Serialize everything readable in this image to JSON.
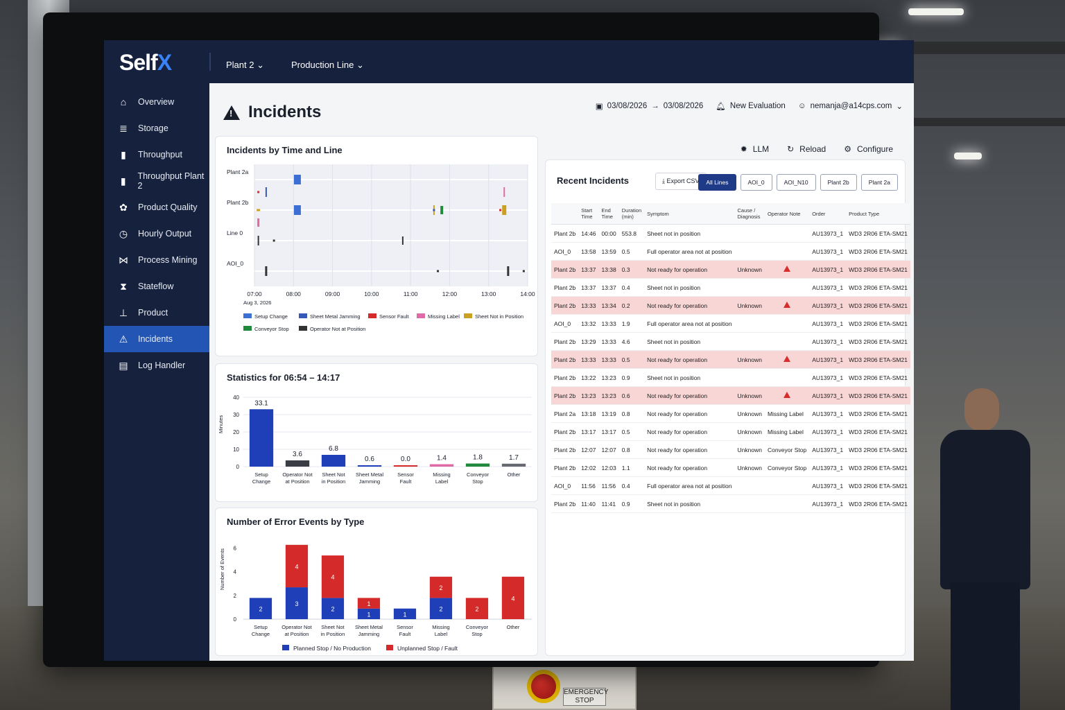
{
  "brand": {
    "logo_main": "Self",
    "logo_accent": "X"
  },
  "topbar": {
    "plant": "Plant 2",
    "line": "Production Line"
  },
  "sidebar": {
    "items": [
      {
        "label": "Overview",
        "icon": "home-icon"
      },
      {
        "label": "Storage",
        "icon": "database-icon"
      },
      {
        "label": "Throughput",
        "icon": "bar-chart-icon"
      },
      {
        "label": "Throughput Plant 2",
        "icon": "bar-chart-icon"
      },
      {
        "label": "Product Quality",
        "icon": "gear-badge-icon"
      },
      {
        "label": "Hourly Output",
        "icon": "clock-icon"
      },
      {
        "label": "Process Mining",
        "icon": "network-icon"
      },
      {
        "label": "Stateflow",
        "icon": "hourglass-icon"
      },
      {
        "label": "Product",
        "icon": "hierarchy-icon"
      },
      {
        "label": "Incidents",
        "icon": "warning-icon",
        "active": true
      },
      {
        "label": "Log Handler",
        "icon": "document-icon"
      }
    ]
  },
  "header": {
    "title": "Incidents",
    "date_from": "03/08/2026",
    "date_to": "03/08/2026",
    "new_evaluation": "New Evaluation",
    "user": "nemanja@a14cps.com"
  },
  "toolbar": {
    "llm": "LLM",
    "reload": "Reload",
    "configure": "Configure"
  },
  "timeline": {
    "title": "Incidents by Time and Line",
    "lines": [
      "Plant 2a",
      "Plant 2b",
      "Line 0",
      "AOI_0"
    ],
    "ticks": [
      "07:00",
      "08:00",
      "09:00",
      "10:00",
      "11:00",
      "12:00",
      "13:00",
      "14:00"
    ],
    "date_label": "Aug 3, 2026",
    "legend": [
      {
        "label": "Setup Change",
        "color": "#3b6fd4"
      },
      {
        "label": "Sheet Metal Jamming",
        "color": "#3557b8"
      },
      {
        "label": "Sensor Fault",
        "color": "#d42a2a"
      },
      {
        "label": "Missing Label",
        "color": "#e06aa5"
      },
      {
        "label": "Sheet Not in Position",
        "color": "#c9a020"
      },
      {
        "label": "Conveyor Stop",
        "color": "#1f8a3c"
      },
      {
        "label": "Operator Not at Position",
        "color": "#333333"
      }
    ]
  },
  "statistics": {
    "title": "Statistics for 06:54 – 14:17",
    "ylabel": "Minutes"
  },
  "errors": {
    "title": "Number of Error Events by Type",
    "ylabel": "Number of Events"
  },
  "chart_data": [
    {
      "type": "bar",
      "title": "Statistics for 06:54 – 14:17",
      "ylabel": "Minutes",
      "ylim": [
        0,
        40
      ],
      "yticks": [
        0,
        10,
        20,
        30,
        40
      ],
      "categories": [
        "Setup Change",
        "Operator Not at Position",
        "Sheet Not in Position",
        "Sheet Metal Jamming",
        "Sensor Fault",
        "Missing Label",
        "Conveyor Stop",
        "Other"
      ],
      "values": [
        33.1,
        3.6,
        6.8,
        0.6,
        0.0,
        1.4,
        1.8,
        1.7
      ],
      "colors": [
        "#1f3fb8",
        "#3a3d44",
        "#1f3fb8",
        "#1f3fb8",
        "#d42a2a",
        "#e06aa5",
        "#1f8a3c",
        "#666a70"
      ]
    },
    {
      "type": "bar",
      "title": "Number of Error Events by Type",
      "ylabel": "Number of Events",
      "ylim": [
        0,
        6
      ],
      "yticks": [
        0,
        2,
        4,
        6
      ],
      "categories": [
        "Setup Change",
        "Operator Not at Position",
        "Sheet Not in Position",
        "Sheet Metal Jamming",
        "Sensor Fault",
        "Missing Label",
        "Conveyor Stop",
        "Other"
      ],
      "series": [
        {
          "name": "Planned Stop / No Production",
          "color": "#1f3fb8",
          "values": [
            2,
            3,
            2,
            1,
            1,
            2,
            0,
            0
          ]
        },
        {
          "name": "Unplanned Stop / Fault",
          "color": "#d42a2a",
          "values": [
            0,
            4,
            4,
            1,
            0,
            2,
            2,
            4
          ]
        }
      ]
    }
  ],
  "recent": {
    "title": "Recent Incidents",
    "export": "Export CSV",
    "tabs": [
      "All Lines",
      "AOI_0",
      "AOI_N10",
      "Plant 2b",
      "Plant 2a"
    ],
    "columns": [
      "Start Time",
      "End Time",
      "Duration (min)",
      "Symptom",
      "Cause / Diagnosis",
      "Operator Note",
      "Order",
      "Product Type"
    ],
    "rows": [
      {
        "line": "Plant 2b",
        "start": "14:46",
        "end": "00:00",
        "dur": "553.8",
        "symptom": "Sheet not in position",
        "cause": "",
        "note": "",
        "order": "AU13973_1",
        "ptype": "WD3 2R06 ETA-SM21",
        "hl": false
      },
      {
        "line": "AOI_0",
        "start": "13:58",
        "end": "13:59",
        "dur": "0.5",
        "symptom": "Full operator area not at position",
        "cause": "",
        "note": "",
        "order": "AU13973_1",
        "ptype": "WD3 2R06 ETA-SM21",
        "hl": false
      },
      {
        "line": "Plant 2b",
        "start": "13:37",
        "end": "13:38",
        "dur": "0.3",
        "symptom": "Not ready for operation",
        "cause": "Unknown",
        "note": "warn",
        "order": "AU13973_1",
        "ptype": "WD3 2R06 ETA-SM21",
        "hl": true
      },
      {
        "line": "Plant 2b",
        "start": "13:37",
        "end": "13:37",
        "dur": "0.4",
        "symptom": "Sheet not in position",
        "cause": "",
        "note": "",
        "order": "AU13973_1",
        "ptype": "WD3 2R06 ETA-SM21",
        "hl": false
      },
      {
        "line": "Plant 2b",
        "start": "13:33",
        "end": "13:34",
        "dur": "0.2",
        "symptom": "Not ready for operation",
        "cause": "Unknown",
        "note": "warn",
        "order": "AU13973_1",
        "ptype": "WD3 2R06 ETA-SM21",
        "hl": true
      },
      {
        "line": "AOI_0",
        "start": "13:32",
        "end": "13:33",
        "dur": "1.9",
        "symptom": "Full operator area not at position",
        "cause": "",
        "note": "",
        "order": "AU13973_1",
        "ptype": "WD3 2R06 ETA-SM21",
        "hl": false
      },
      {
        "line": "Plant 2b",
        "start": "13:29",
        "end": "13:33",
        "dur": "4.6",
        "symptom": "Sheet not in position",
        "cause": "",
        "note": "",
        "order": "AU13973_1",
        "ptype": "WD3 2R06 ETA-SM21",
        "hl": false
      },
      {
        "line": "Plant 2b",
        "start": "13:33",
        "end": "13:33",
        "dur": "0.5",
        "symptom": "Not ready for operation",
        "cause": "Unknown",
        "note": "warn",
        "order": "AU13973_1",
        "ptype": "WD3 2R06 ETA-SM21",
        "hl": true
      },
      {
        "line": "Plant 2b",
        "start": "13:22",
        "end": "13:23",
        "dur": "0.9",
        "symptom": "Sheet not in position",
        "cause": "",
        "note": "",
        "order": "AU13973_1",
        "ptype": "WD3 2R06 ETA-SM21",
        "hl": false
      },
      {
        "line": "Plant 2b",
        "start": "13:23",
        "end": "13:23",
        "dur": "0.6",
        "symptom": "Not ready for operation",
        "cause": "Unknown",
        "note": "warn",
        "order": "AU13973_1",
        "ptype": "WD3 2R06 ETA-SM21",
        "hl": true
      },
      {
        "line": "Plant 2a",
        "start": "13:18",
        "end": "13:19",
        "dur": "0.8",
        "symptom": "Not ready for operation",
        "cause": "Unknown",
        "note": "Missing Label",
        "order": "AU13973_1",
        "ptype": "WD3 2R06 ETA-SM21",
        "hl": false
      },
      {
        "line": "Plant 2b",
        "start": "13:17",
        "end": "13:17",
        "dur": "0.5",
        "symptom": "Not ready for operation",
        "cause": "Unknown",
        "note": "Missing Label",
        "order": "AU13973_1",
        "ptype": "WD3 2R06 ETA-SM21",
        "hl": false
      },
      {
        "line": "Plant 2b",
        "start": "12:07",
        "end": "12:07",
        "dur": "0.8",
        "symptom": "Not ready for operation",
        "cause": "Unknown",
        "note": "Conveyor Stop",
        "order": "AU13973_1",
        "ptype": "WD3 2R06 ETA-SM21",
        "hl": false
      },
      {
        "line": "Plant 2b",
        "start": "12:02",
        "end": "12:03",
        "dur": "1.1",
        "symptom": "Not ready for operation",
        "cause": "Unknown",
        "note": "Conveyor Stop",
        "order": "AU13973_1",
        "ptype": "WD3 2R06 ETA-SM21",
        "hl": false
      },
      {
        "line": "AOI_0",
        "start": "11:56",
        "end": "11:56",
        "dur": "0.4",
        "symptom": "Full operator area not at position",
        "cause": "",
        "note": "",
        "order": "AU13973_1",
        "ptype": "WD3 2R06 ETA-SM21",
        "hl": false
      },
      {
        "line": "Plant 2b",
        "start": "11:40",
        "end": "11:41",
        "dur": "0.9",
        "symptom": "Sheet not in position",
        "cause": "",
        "note": "",
        "order": "AU13973_1",
        "ptype": "WD3 2R06 ETA-SM21",
        "hl": false
      }
    ]
  },
  "environment": {
    "estop_label": "EMERGENCY STOP"
  }
}
